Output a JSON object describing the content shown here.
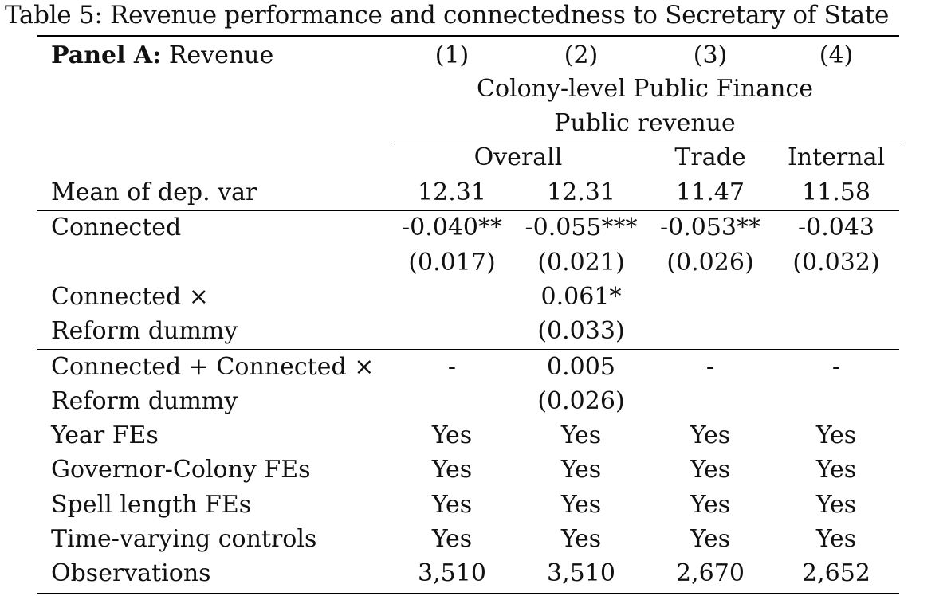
{
  "caption": "Table 5: Revenue performance and connectedness to Secretary of State",
  "panel": {
    "title_bold": "Panel A:",
    "title_rest": " Revenue"
  },
  "column_numbers": [
    "(1)",
    "(2)",
    "(3)",
    "(4)"
  ],
  "header_group": "Colony-level Public Finance",
  "header_sub": "Public revenue",
  "header_categories": {
    "overall": "Overall",
    "trade": "Trade",
    "internal": "Internal"
  },
  "mean_row": {
    "label": "Mean of dep. var",
    "values": [
      "12.31",
      "12.31",
      "11.47",
      "11.58"
    ]
  },
  "connected": {
    "label": "Connected",
    "coef": [
      "-0.040**",
      "-0.055***",
      "-0.053**",
      "-0.043"
    ],
    "se": [
      "(0.017)",
      "(0.021)",
      "(0.026)",
      "(0.032)"
    ]
  },
  "interaction": {
    "label_line1": "Connected ×",
    "label_line2": "Reform dummy",
    "coef": [
      "",
      "0.061*",
      "",
      ""
    ],
    "se": [
      "",
      "(0.033)",
      "",
      ""
    ]
  },
  "combined": {
    "label_line1": "Connected + Connected ×",
    "label_line2": "Reform dummy",
    "coef": [
      "-",
      "0.005",
      "-",
      "-"
    ],
    "se": [
      "",
      "(0.026)",
      "",
      ""
    ]
  },
  "fe_rows": [
    {
      "label": "Year FEs",
      "values": [
        "Yes",
        "Yes",
        "Yes",
        "Yes"
      ]
    },
    {
      "label": "Governor-Colony FEs",
      "values": [
        "Yes",
        "Yes",
        "Yes",
        "Yes"
      ]
    },
    {
      "label": "Spell length FEs",
      "values": [
        "Yes",
        "Yes",
        "Yes",
        "Yes"
      ]
    },
    {
      "label": "Time-varying controls",
      "values": [
        "Yes",
        "Yes",
        "Yes",
        "Yes"
      ]
    },
    {
      "label": "Observations",
      "values": [
        "3,510",
        "3,510",
        "2,670",
        "2,652"
      ]
    }
  ]
}
